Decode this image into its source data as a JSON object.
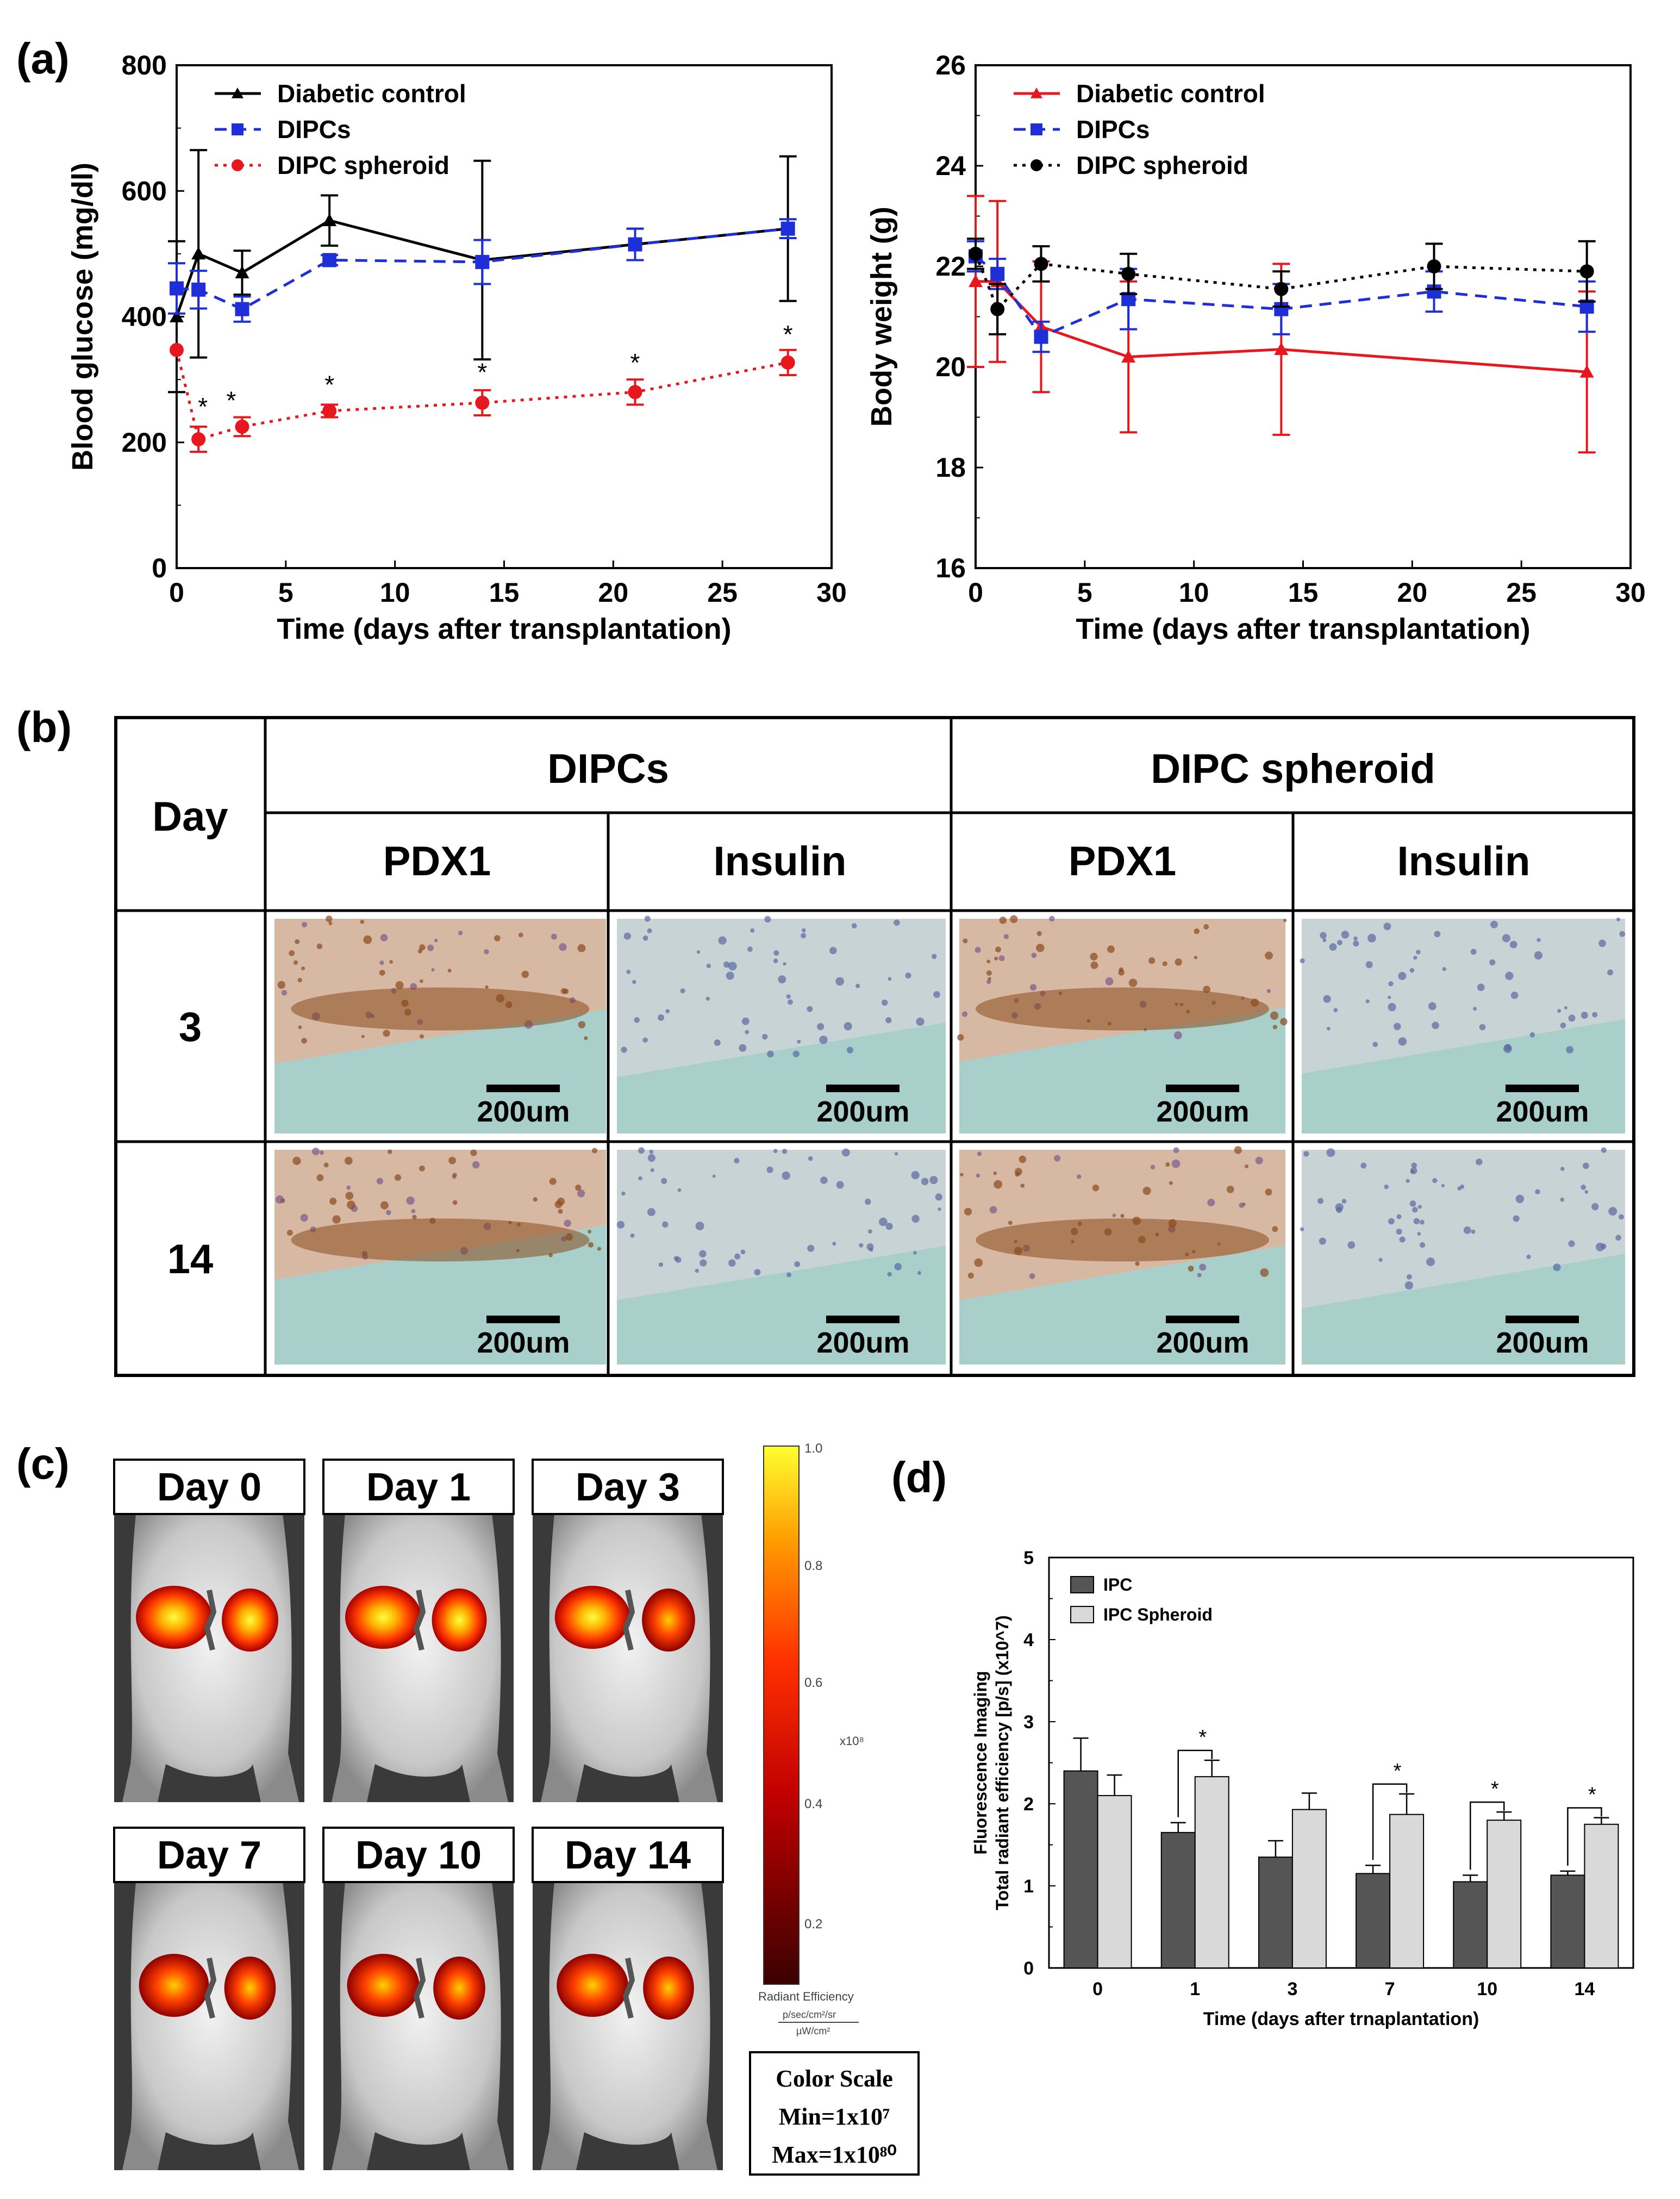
{
  "panels": {
    "a": "(a)",
    "b": "(b)",
    "c": "(c)",
    "d": "(d)"
  },
  "colors": {
    "black": "#000000",
    "blue": "#1f2fd8",
    "red": "#e8171d",
    "bar_dark": "#555555",
    "bar_light": "#d9d9d9"
  },
  "chart_data": [
    {
      "id": "glucose",
      "type": "line",
      "title": "",
      "xlabel": "Time  (days after transplantation)",
      "ylabel": "Blood glucose (mg/dl)",
      "xlim": [
        0,
        30
      ],
      "ylim": [
        0,
        800
      ],
      "xticks": [
        0,
        5,
        10,
        15,
        20,
        25,
        30
      ],
      "yticks": [
        0,
        200,
        400,
        600,
        800
      ],
      "legend_position": "top-left",
      "series": [
        {
          "name": "Diabetic control",
          "color": "#000000",
          "style": "solid",
          "marker": "triangle",
          "x": [
            0,
            1,
            3,
            7,
            14,
            21,
            28
          ],
          "y": [
            400,
            500,
            470,
            553,
            490,
            515,
            540
          ],
          "err": [
            120,
            165,
            35,
            40,
            158,
            25,
            115
          ]
        },
        {
          "name": "DIPCs",
          "color": "#1f2fd8",
          "style": "dashed",
          "marker": "square",
          "x": [
            0,
            1,
            3,
            7,
            14,
            21,
            28
          ],
          "y": [
            445,
            443,
            412,
            490,
            487,
            515,
            540
          ],
          "err": [
            40,
            30,
            20,
            8,
            35,
            25,
            15
          ]
        },
        {
          "name": "DIPC spheroid",
          "color": "#e8171d",
          "style": "dotted",
          "marker": "circle",
          "x": [
            0,
            1,
            3,
            7,
            14,
            21,
            28
          ],
          "y": [
            347,
            205,
            225,
            250,
            263,
            280,
            327
          ],
          "err": [
            0,
            20,
            15,
            10,
            20,
            20,
            20
          ]
        }
      ],
      "significance": [
        {
          "x": 1.2,
          "y": 255,
          "text": "*"
        },
        {
          "x": 2.5,
          "y": 265,
          "text": "*"
        },
        {
          "x": 7,
          "y": 290,
          "text": "*"
        },
        {
          "x": 14,
          "y": 310,
          "text": "*"
        },
        {
          "x": 21,
          "y": 325,
          "text": "*"
        },
        {
          "x": 28,
          "y": 370,
          "text": "*"
        }
      ]
    },
    {
      "id": "weight",
      "type": "line",
      "title": "",
      "xlabel": "Time  (days after transplantation)",
      "ylabel": "Body weight (g)",
      "xlim": [
        0,
        30
      ],
      "ylim": [
        16,
        26
      ],
      "xticks": [
        0,
        5,
        10,
        15,
        20,
        25,
        30
      ],
      "yticks": [
        16,
        18,
        20,
        22,
        24,
        26
      ],
      "legend_position": "top-left",
      "series": [
        {
          "name": "Diabetic control",
          "color": "#e8171d",
          "style": "solid",
          "marker": "triangle",
          "x": [
            0,
            1,
            3,
            7,
            14,
            28
          ],
          "y": [
            21.7,
            21.7,
            20.8,
            20.2,
            20.35,
            19.9
          ],
          "err": [
            1.7,
            1.6,
            1.3,
            1.5,
            1.7,
            1.6
          ]
        },
        {
          "name": "DIPCs",
          "color": "#1f2fd8",
          "style": "dashed",
          "marker": "square",
          "x": [
            0,
            1,
            3,
            7,
            14,
            21,
            28
          ],
          "y": [
            22.2,
            21.85,
            20.6,
            21.35,
            21.15,
            21.5,
            21.2
          ],
          "err": [
            0.3,
            0.3,
            0.3,
            0.6,
            0.5,
            0.4,
            0.5
          ]
        },
        {
          "name": "DIPC spheroid",
          "color": "#000000",
          "style": "dotted",
          "marker": "circle",
          "x": [
            0,
            1,
            3,
            7,
            14,
            21,
            28
          ],
          "y": [
            22.25,
            21.15,
            22.05,
            21.85,
            21.55,
            22.0,
            21.9
          ],
          "err": [
            0.3,
            0.5,
            0.35,
            0.4,
            0.35,
            0.45,
            0.6
          ]
        }
      ]
    },
    {
      "id": "fluorescence",
      "type": "bar",
      "title": "",
      "xlabel": "Time  (days after trnaplantation)",
      "ylabel_line1": "Fluorescence Imaging",
      "ylabel_line2": "Total radiant efficiency [p/s] (x10^7)",
      "ylim": [
        0,
        5
      ],
      "yticks": [
        0,
        1,
        2,
        3,
        4,
        5
      ],
      "categories": [
        "0",
        "1",
        "3",
        "7",
        "10",
        "14"
      ],
      "legend_position": "top-left",
      "series": [
        {
          "name": "IPC",
          "color": "#555555",
          "values": [
            2.4,
            1.65,
            1.35,
            1.15,
            1.05,
            1.13
          ],
          "err": [
            0.4,
            0.12,
            0.2,
            0.1,
            0.08,
            0.05
          ]
        },
        {
          "name": "IPC Spheroid",
          "color": "#d9d9d9",
          "values": [
            2.1,
            2.33,
            1.93,
            1.87,
            1.8,
            1.75
          ],
          "err": [
            0.25,
            0.2,
            0.2,
            0.25,
            0.1,
            0.08
          ]
        }
      ],
      "significance_cats": [
        "1",
        "7",
        "10",
        "14"
      ],
      "significance_text": "*"
    }
  ],
  "table": {
    "day_header": "Day",
    "groups": [
      "DIPCs",
      "DIPC spheroid"
    ],
    "stains": [
      "PDX1",
      "Insulin",
      "PDX1",
      "Insulin"
    ],
    "rows": [
      "3",
      "14"
    ],
    "scale_label": "200um"
  },
  "imaging": {
    "days": [
      "Day 0",
      "Day 1",
      "Day 3",
      "Day 7",
      "Day 10",
      "Day 14"
    ],
    "colorbar_ticks": [
      "1.0",
      "0.8",
      "0.6",
      "0.4",
      "0.2"
    ],
    "colorbar_exp": "x10⁸",
    "colorbar_title": "Radiant Efficiency",
    "colorbar_units_num": "p/sec/cm²/sr",
    "colorbar_units_den": "µW/cm²",
    "scale_box_title": "Color Scale",
    "scale_min": "Min=1x10⁷",
    "scale_max": "Max=1x10⁸⁰"
  }
}
